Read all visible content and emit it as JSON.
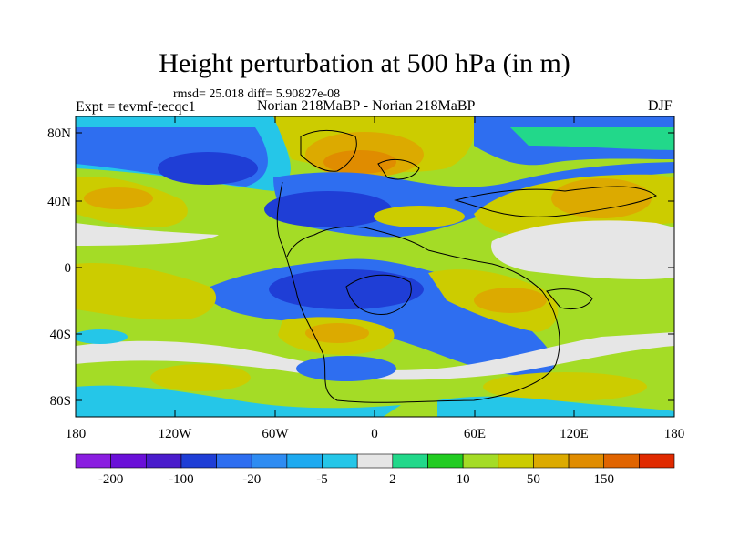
{
  "title": "Height perturbation at 500 hPa (in m)",
  "stats_line": "rmsd= 25.018 diff= 5.90827e-08",
  "left_label": "Expt = tevmf-tecqc1",
  "center_label": "Norian 218MaBP - Norian 218MaBP",
  "right_label": "DJF",
  "lat_ticks": [
    "80N",
    "40N",
    "0",
    "40S",
    "80S"
  ],
  "lon_ticks": [
    "180",
    "120W",
    "60W",
    "0",
    "60E",
    "120E",
    "180"
  ],
  "colorbar": {
    "colors": [
      "#8a1ee0",
      "#6a10d8",
      "#4a1ccc",
      "#1f3ed6",
      "#2e6ef0",
      "#2f8cf2",
      "#1eaaf0",
      "#25c6e8",
      "#e6e6e6",
      "#22d88a",
      "#22cc22",
      "#a4dc26",
      "#cccc00",
      "#dcaa00",
      "#e08c00",
      "#e06400",
      "#e02a00"
    ],
    "labels": [
      "-200",
      "-100",
      "-20",
      "-5",
      "2",
      "10",
      "50",
      "150"
    ]
  }
}
